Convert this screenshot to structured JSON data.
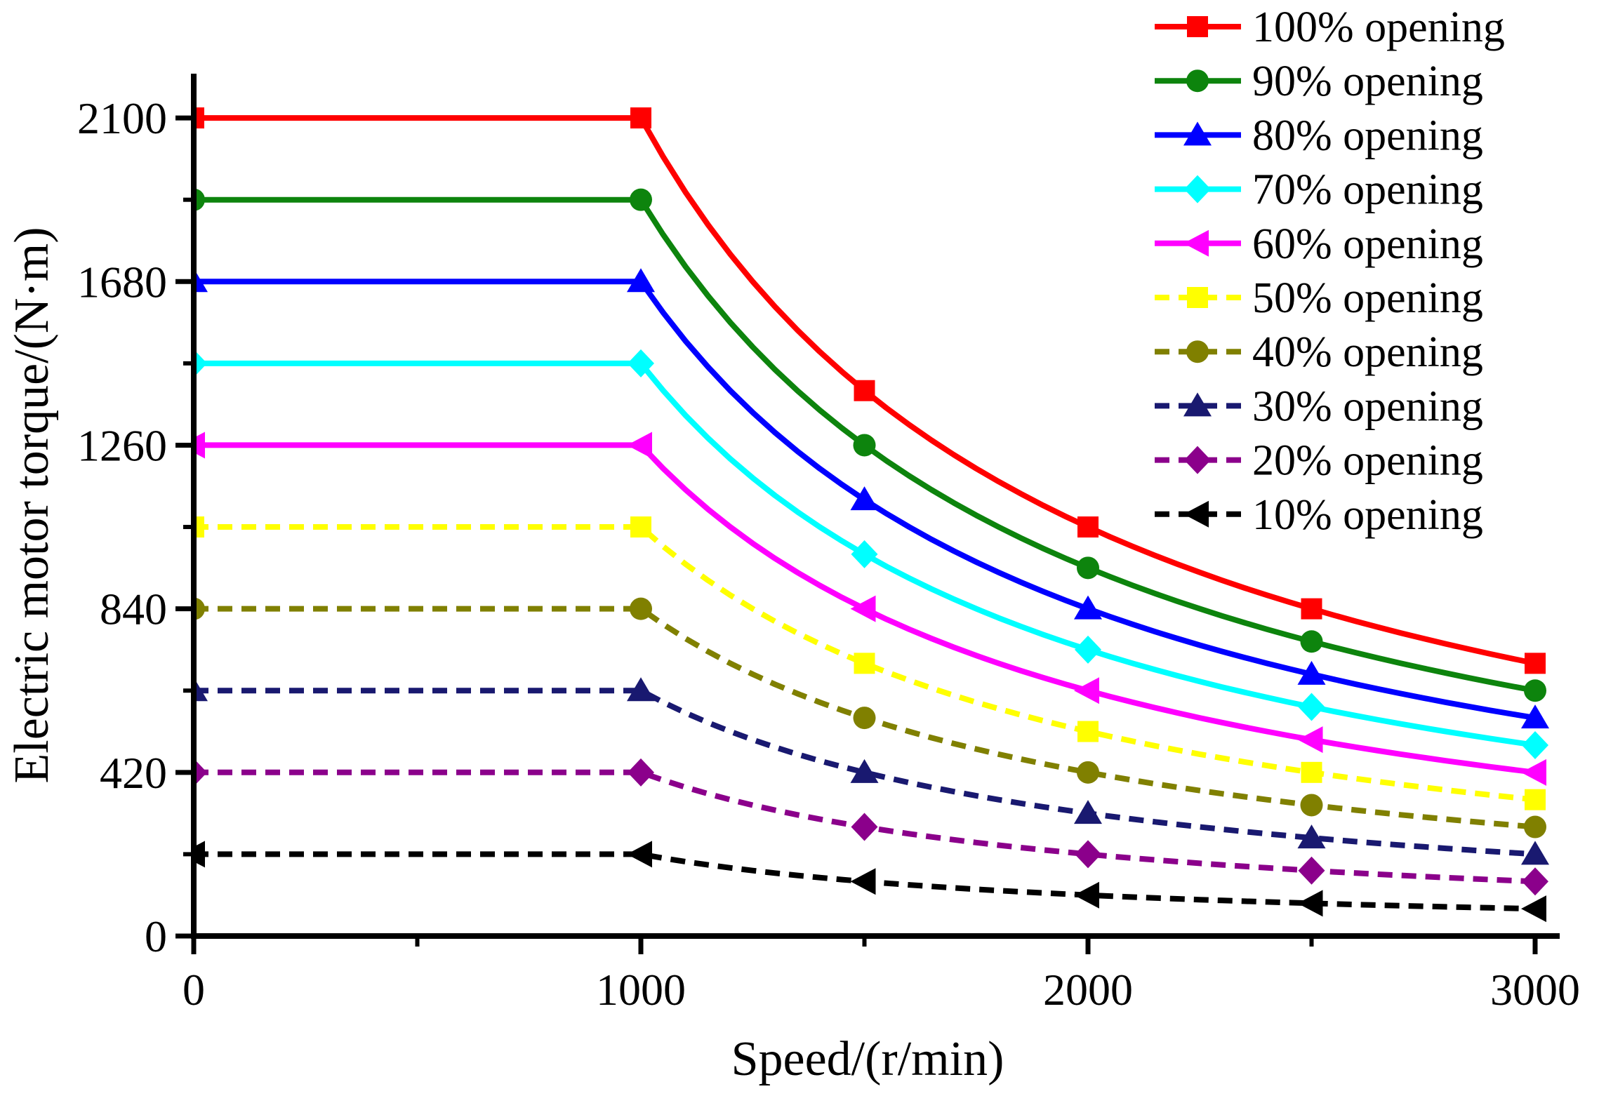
{
  "chart_data": {
    "type": "line",
    "title": "",
    "xlabel": "Speed/(r/min)",
    "ylabel": "Electric motor torque/(N·m)",
    "xlim": [
      0,
      3050
    ],
    "ylim": [
      0,
      2210
    ],
    "grid": false,
    "legend_position": "top-right",
    "x_major_ticks": [
      0,
      1000,
      2000,
      3000
    ],
    "x_minor_ticks": [
      500,
      1500,
      2500
    ],
    "y_major_ticks": [
      0,
      420,
      840,
      1260,
      1680,
      2100
    ],
    "y_minor_ticks": [
      210,
      630,
      1050,
      1470,
      1890
    ],
    "x": [
      0,
      1000,
      1500,
      2000,
      2500,
      3000
    ],
    "curve_model": "constant torque up to 1000 r/min, then constant power T = T0*1000/n",
    "series": [
      {
        "name": "100% opening",
        "color": "#FF0000",
        "line": "solid",
        "marker": "square",
        "values": [
          2100,
          2100,
          1400,
          1050,
          840,
          700
        ]
      },
      {
        "name": "90% opening",
        "color": "#0D840D",
        "line": "solid",
        "marker": "circle",
        "values": [
          1890,
          1890,
          1260,
          945,
          756,
          630
        ]
      },
      {
        "name": "80% opening",
        "color": "#0000FF",
        "line": "solid",
        "marker": "triangle-up",
        "values": [
          1680,
          1680,
          1120,
          840,
          672,
          560
        ]
      },
      {
        "name": "70% opening",
        "color": "#00FFFF",
        "line": "solid",
        "marker": "diamond",
        "values": [
          1470,
          1470,
          980,
          735,
          588,
          490
        ]
      },
      {
        "name": "60% opening",
        "color": "#FF00FF",
        "line": "solid",
        "marker": "triangle-left",
        "values": [
          1260,
          1260,
          840,
          630,
          504,
          420
        ]
      },
      {
        "name": "50% opening",
        "color": "#FFFF00",
        "line": "dashed",
        "marker": "square",
        "values": [
          1050,
          1050,
          700,
          525,
          420,
          350
        ]
      },
      {
        "name": "40% opening",
        "color": "#808000",
        "line": "dashed",
        "marker": "circle",
        "values": [
          840,
          840,
          560,
          420,
          336,
          280
        ]
      },
      {
        "name": "30% opening",
        "color": "#191970",
        "line": "dashed",
        "marker": "triangle-up",
        "values": [
          630,
          630,
          420,
          315,
          252,
          210
        ]
      },
      {
        "name": "20% opening",
        "color": "#8B008B",
        "line": "dashed",
        "marker": "diamond",
        "values": [
          420,
          420,
          280,
          210,
          168,
          140
        ]
      },
      {
        "name": "10% opening",
        "color": "#000000",
        "line": "dashed",
        "marker": "triangle-left",
        "values": [
          210,
          210,
          140,
          105,
          84,
          70
        ]
      }
    ]
  }
}
